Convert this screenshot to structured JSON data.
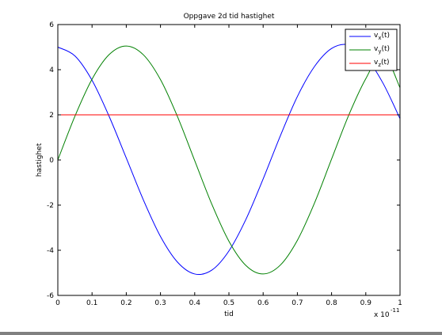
{
  "chart_data": {
    "type": "line",
    "title": "Oppgave 2d tid hastighet",
    "xlabel": "tid",
    "ylabel": "hastighet",
    "x_exponent_label": {
      "base": "x 10",
      "exponent": "-11"
    },
    "xlim": [
      0,
      1
    ],
    "ylim": [
      -6,
      6
    ],
    "x_unit_scale": 1e-11,
    "xticks": [
      "0",
      "0.1",
      "0.2",
      "0.3",
      "0.4",
      "0.5",
      "0.6",
      "0.7",
      "0.8",
      "0.9",
      "1"
    ],
    "yticks": [
      "-6",
      "-4",
      "-2",
      "0",
      "2",
      "4",
      "6"
    ],
    "grid": false,
    "legend_position": "top-right",
    "series": [
      {
        "name": "v_x(t)",
        "legend": {
          "main": "v",
          "sub": "x",
          "suffix": "(t)"
        },
        "color": "#0000ff",
        "x": [
          0,
          0.05,
          0.1,
          0.15,
          0.2,
          0.25,
          0.3,
          0.35,
          0.4,
          0.45,
          0.5,
          0.55,
          0.6,
          0.65,
          0.7,
          0.75,
          0.8,
          0.85,
          0.9,
          0.95,
          1.0
        ],
        "y": [
          5.0,
          4.61,
          3.53,
          1.93,
          0.09,
          -1.77,
          -3.39,
          -4.53,
          -5.05,
          -4.88,
          -4.03,
          -2.62,
          -0.84,
          1.06,
          2.81,
          4.14,
          4.94,
          5.1,
          4.56,
          3.41,
          1.83
        ]
      },
      {
        "name": "v_y(t)",
        "legend": {
          "main": "v",
          "sub": "y",
          "suffix": "(t)"
        },
        "color": "#008000",
        "x": [
          0,
          0.05,
          0.1,
          0.15,
          0.2,
          0.25,
          0.3,
          0.35,
          0.4,
          0.45,
          0.5,
          0.55,
          0.6,
          0.65,
          0.7,
          0.75,
          0.8,
          0.85,
          0.9,
          0.95,
          1.0
        ],
        "y": [
          0.0,
          1.94,
          3.58,
          4.67,
          5.05,
          4.66,
          3.56,
          1.91,
          -0.03,
          -1.96,
          -3.6,
          -4.68,
          -5.05,
          -4.66,
          -3.56,
          -1.91,
          0.04,
          1.98,
          3.6,
          4.69,
          3.2
        ]
      },
      {
        "name": "v_z(t)",
        "legend": {
          "main": "v",
          "sub": "z",
          "suffix": "(t)"
        },
        "color": "#ff0000",
        "x": [
          0,
          1
        ],
        "y": [
          2,
          2
        ]
      }
    ]
  }
}
